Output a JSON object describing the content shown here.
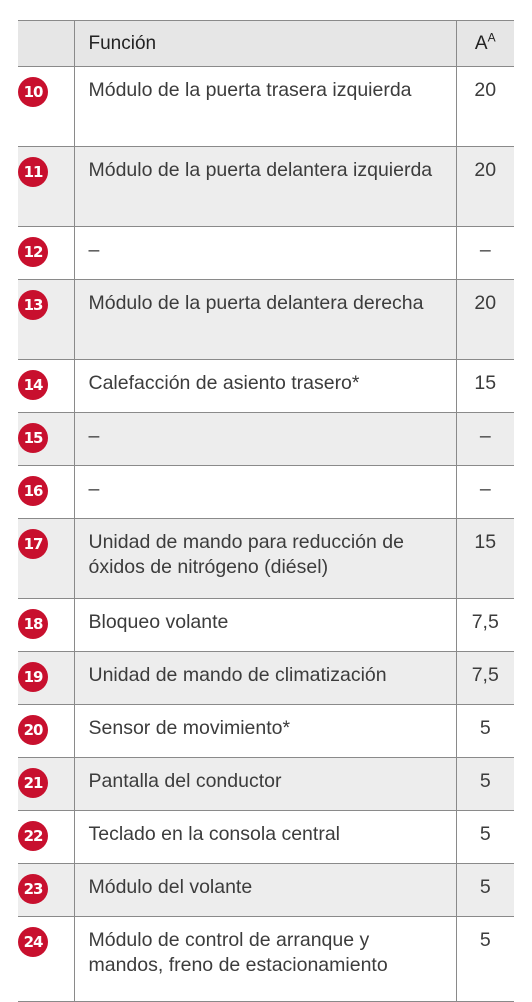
{
  "table": {
    "header": {
      "function_label": "Función",
      "amp_label": "A",
      "amp_superscript": "A"
    },
    "rows": [
      {
        "number": "10",
        "function": "Módulo de la puerta trasera izquierda",
        "amps": "20"
      },
      {
        "number": "11",
        "function": "Módulo de la puerta delantera izquierda",
        "amps": "20"
      },
      {
        "number": "12",
        "function": "–",
        "amps": "–"
      },
      {
        "number": "13",
        "function": "Módulo de la puerta delantera derecha",
        "amps": "20"
      },
      {
        "number": "14",
        "function": "Calefacción de asiento trasero*",
        "amps": "15"
      },
      {
        "number": "15",
        "function": "–",
        "amps": "–"
      },
      {
        "number": "16",
        "function": "–",
        "amps": "–"
      },
      {
        "number": "17",
        "function": "Unidad de mando para reducción de óxidos de nitrógeno (diésel)",
        "amps": "15"
      },
      {
        "number": "18",
        "function": "Bloqueo volante",
        "amps": "7,5"
      },
      {
        "number": "19",
        "function": "Unidad de mando de climatización",
        "amps": "7,5"
      },
      {
        "number": "20",
        "function": "Sensor de movimiento*",
        "amps": "5"
      },
      {
        "number": "21",
        "function": "Pantalla del conductor",
        "amps": "5"
      },
      {
        "number": "22",
        "function": "Teclado en la consola central",
        "amps": "5"
      },
      {
        "number": "23",
        "function": "Módulo del volante",
        "amps": "5"
      },
      {
        "number": "24",
        "function": "Módulo de control de arranque y mandos, freno de estacionamiento",
        "amps": "5"
      }
    ]
  },
  "colors": {
    "badge": "#c8102e",
    "header_bg": "#e6e6e6",
    "shaded_row_bg": "#ededed",
    "border": "#8a8a8a"
  }
}
